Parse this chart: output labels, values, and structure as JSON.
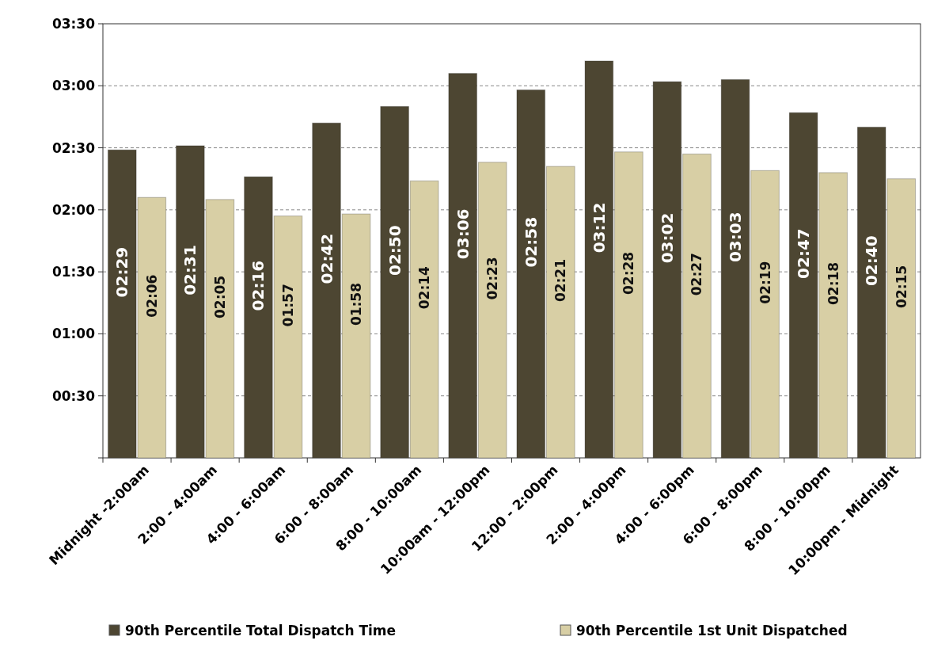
{
  "chart_data": {
    "type": "bar",
    "categories": [
      "Midnight -2:00am",
      "2:00 - 4:00am",
      "4:00 - 6:00am",
      "6:00 - 8:00am",
      "8:00 - 10:00am",
      "10:00am - 12:00pm",
      "12:00 - 2:00pm",
      "2:00 - 4:00pm",
      "4:00 - 6:00pm",
      "6:00 - 8:00pm",
      "8:00 - 10:00pm",
      "10:00pm - Midnight"
    ],
    "series": [
      {
        "name": "90th Percentile Total Dispatch Time",
        "color": "#4d4632",
        "values": [
          149,
          151,
          136,
          162,
          170,
          186,
          178,
          192,
          182,
          183,
          167,
          160
        ],
        "value_labels": [
          "02:29",
          "02:31",
          "02:16",
          "02:42",
          "02:50",
          "03:06",
          "02:58",
          "03:12",
          "03:02",
          "03:03",
          "02:47",
          "02:40"
        ]
      },
      {
        "name": "90th Percentile 1st Unit Dispatched",
        "color": "#d8cfa5",
        "values": [
          126,
          125,
          117,
          118,
          134,
          143,
          141,
          148,
          147,
          139,
          138,
          135
        ],
        "value_labels": [
          "02:06",
          "02:05",
          "01:57",
          "01:58",
          "02:14",
          "02:23",
          "02:21",
          "02:28",
          "02:27",
          "02:19",
          "02:18",
          "02:15"
        ]
      }
    ],
    "ylim": [
      0,
      210
    ],
    "yticks": [
      {
        "value": 0,
        "label": null
      },
      {
        "value": 30,
        "label": "00:30"
      },
      {
        "value": 60,
        "label": "01:00"
      },
      {
        "value": 90,
        "label": "01:30"
      },
      {
        "value": 120,
        "label": "02:00"
      },
      {
        "value": 150,
        "label": "02:30"
      },
      {
        "value": 180,
        "label": "03:00"
      },
      {
        "value": 210,
        "label": "03:30"
      }
    ],
    "grid": "y",
    "legend": "bottom"
  }
}
